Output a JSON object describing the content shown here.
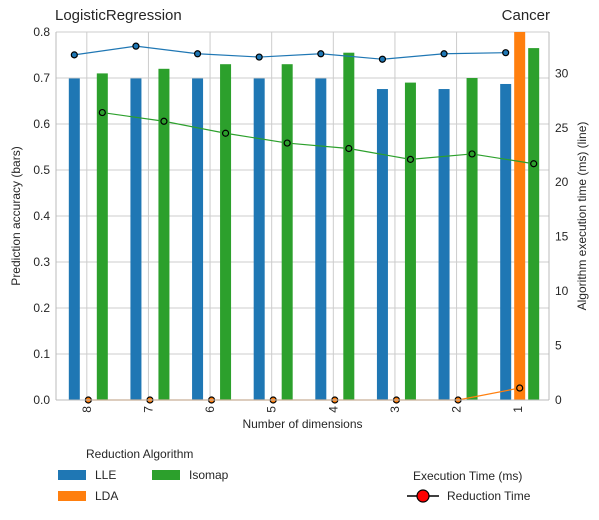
{
  "chart_data": {
    "type": "bar",
    "title_left": "LogisticRegression",
    "title_right": "Cancer",
    "xlabel": "Number of dimensions",
    "ylabel_left": "Prediction accuracy (bars)",
    "ylabel_right": "Algorithm execution time (ms) (line)",
    "categories": [
      "8",
      "7",
      "6",
      "5",
      "4",
      "3",
      "2",
      "1"
    ],
    "ylim_left": [
      0,
      0.8
    ],
    "yticks_left": [
      "0.0",
      "0.1",
      "0.2",
      "0.3",
      "0.4",
      "0.5",
      "0.6",
      "0.7",
      "0.8"
    ],
    "ylim_right": [
      0,
      33.8
    ],
    "yticks_right": [
      "0",
      "5",
      "10",
      "15",
      "20",
      "25",
      "30"
    ],
    "grid": true,
    "series": [
      {
        "name": "LLE",
        "color": "#1f77b4",
        "values": [
          0.699,
          0.699,
          0.699,
          0.699,
          0.699,
          0.676,
          0.676,
          0.687
        ],
        "times": [
          31.7,
          32.5,
          31.8,
          31.5,
          31.8,
          31.3,
          31.8,
          31.9
        ]
      },
      {
        "name": "LDA",
        "color": "#ff7f0e",
        "values": [
          0,
          0,
          0,
          0,
          0,
          0,
          0,
          0.81
        ],
        "times": [
          0,
          0,
          0,
          0,
          0,
          0,
          0,
          1.1
        ]
      },
      {
        "name": "Isomap",
        "color": "#2ca02c",
        "values": [
          0.71,
          0.72,
          0.73,
          0.73,
          0.755,
          0.69,
          0.7,
          0.765
        ],
        "times": [
          26.4,
          25.6,
          24.5,
          23.6,
          23.1,
          22.1,
          22.6,
          21.7
        ]
      }
    ],
    "legend": {
      "title": "Reduction Algorithm",
      "placement": "bottom-left",
      "time_title": "Execution Time (ms)",
      "time_label": "Reduction Time",
      "time_marker_color": "#ff0000"
    }
  }
}
